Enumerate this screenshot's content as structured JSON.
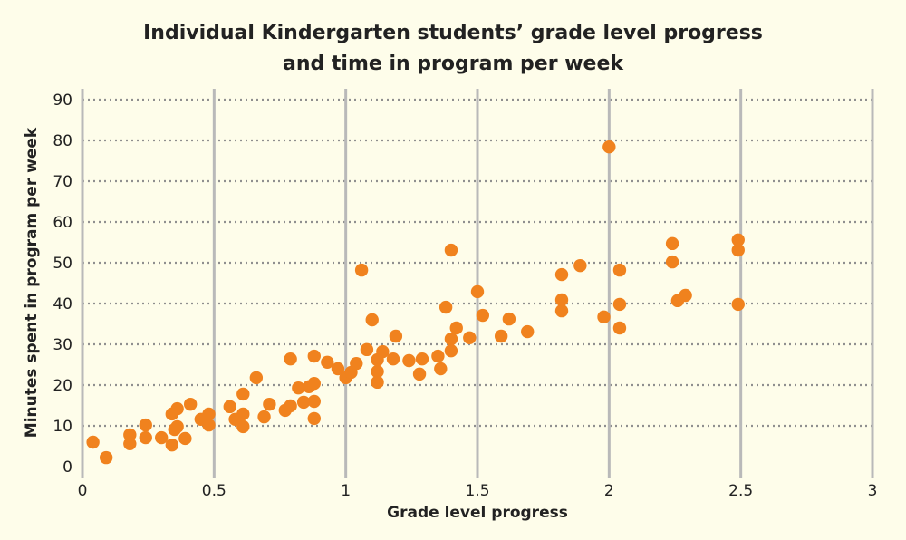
{
  "chart_data": {
    "type": "scatter",
    "title": [
      "Individual Kindergarten students’ grade level progress",
      "and time in program per week"
    ],
    "xlabel": "Grade level progress",
    "ylabel": "Minutes spent in program per week",
    "xlim": [
      0,
      3
    ],
    "ylim": [
      0,
      90
    ],
    "xticks": [
      0,
      0.5,
      1,
      1.5,
      2,
      2.5,
      3
    ],
    "xtick_labels": [
      "0",
      "0.5",
      "1",
      "1.5",
      "2",
      "2.5",
      "3"
    ],
    "yticks": [
      0,
      10,
      20,
      30,
      40,
      50,
      60,
      70,
      80,
      90
    ],
    "ytick_labels": [
      "0",
      "10",
      "20",
      "30",
      "40",
      "50",
      "60",
      "70",
      "80",
      "90"
    ],
    "grid": {
      "vertical": "solid",
      "horizontal": "dotted"
    },
    "colors": {
      "point": "#f0821e",
      "background": "#fefdea",
      "grid": "#b9b9b9"
    },
    "points": [
      [
        0.04,
        6.0
      ],
      [
        0.09,
        2.2
      ],
      [
        0.18,
        7.8
      ],
      [
        0.18,
        5.6
      ],
      [
        0.24,
        10.2
      ],
      [
        0.24,
        7.1
      ],
      [
        0.3,
        7.1
      ],
      [
        0.34,
        5.3
      ],
      [
        0.34,
        12.9
      ],
      [
        0.36,
        14.2
      ],
      [
        0.36,
        9.8
      ],
      [
        0.35,
        9.1
      ],
      [
        0.39,
        6.9
      ],
      [
        0.41,
        15.3
      ],
      [
        0.45,
        11.6
      ],
      [
        0.48,
        12.9
      ],
      [
        0.48,
        10.2
      ],
      [
        0.56,
        14.7
      ],
      [
        0.61,
        17.8
      ],
      [
        0.61,
        12.9
      ],
      [
        0.58,
        11.6
      ],
      [
        0.61,
        9.8
      ],
      [
        0.66,
        21.8
      ],
      [
        0.71,
        15.3
      ],
      [
        0.69,
        12.2
      ],
      [
        0.77,
        13.8
      ],
      [
        0.79,
        14.9
      ],
      [
        0.79,
        26.4
      ],
      [
        0.82,
        19.3
      ],
      [
        0.86,
        19.6
      ],
      [
        0.88,
        20.4
      ],
      [
        0.88,
        27.1
      ],
      [
        0.84,
        15.8
      ],
      [
        0.88,
        16.0
      ],
      [
        0.88,
        11.8
      ],
      [
        0.93,
        25.6
      ],
      [
        0.97,
        24.0
      ],
      [
        1.0,
        21.8
      ],
      [
        1.02,
        23.1
      ],
      [
        1.04,
        25.3
      ],
      [
        1.06,
        48.2
      ],
      [
        1.08,
        28.7
      ],
      [
        1.1,
        36.0
      ],
      [
        1.12,
        26.2
      ],
      [
        1.14,
        28.2
      ],
      [
        1.12,
        23.3
      ],
      [
        1.12,
        20.7
      ],
      [
        1.18,
        26.4
      ],
      [
        1.19,
        32.0
      ],
      [
        1.24,
        26.0
      ],
      [
        1.28,
        22.7
      ],
      [
        1.29,
        26.4
      ],
      [
        1.35,
        27.1
      ],
      [
        1.36,
        24.0
      ],
      [
        1.4,
        53.1
      ],
      [
        1.38,
        39.1
      ],
      [
        1.42,
        34.0
      ],
      [
        1.4,
        31.3
      ],
      [
        1.4,
        28.4
      ],
      [
        1.47,
        31.6
      ],
      [
        1.5,
        42.9
      ],
      [
        1.52,
        37.1
      ],
      [
        1.59,
        32.0
      ],
      [
        1.62,
        36.2
      ],
      [
        1.69,
        33.1
      ],
      [
        1.82,
        47.1
      ],
      [
        1.82,
        40.9
      ],
      [
        1.82,
        38.2
      ],
      [
        1.89,
        49.3
      ],
      [
        1.98,
        36.7
      ],
      [
        2.0,
        78.4
      ],
      [
        2.04,
        48.2
      ],
      [
        2.04,
        39.8
      ],
      [
        2.04,
        34.0
      ],
      [
        2.24,
        54.7
      ],
      [
        2.24,
        50.2
      ],
      [
        2.26,
        40.7
      ],
      [
        2.29,
        42.0
      ],
      [
        2.49,
        55.6
      ],
      [
        2.49,
        53.1
      ],
      [
        2.49,
        39.8
      ]
    ]
  }
}
